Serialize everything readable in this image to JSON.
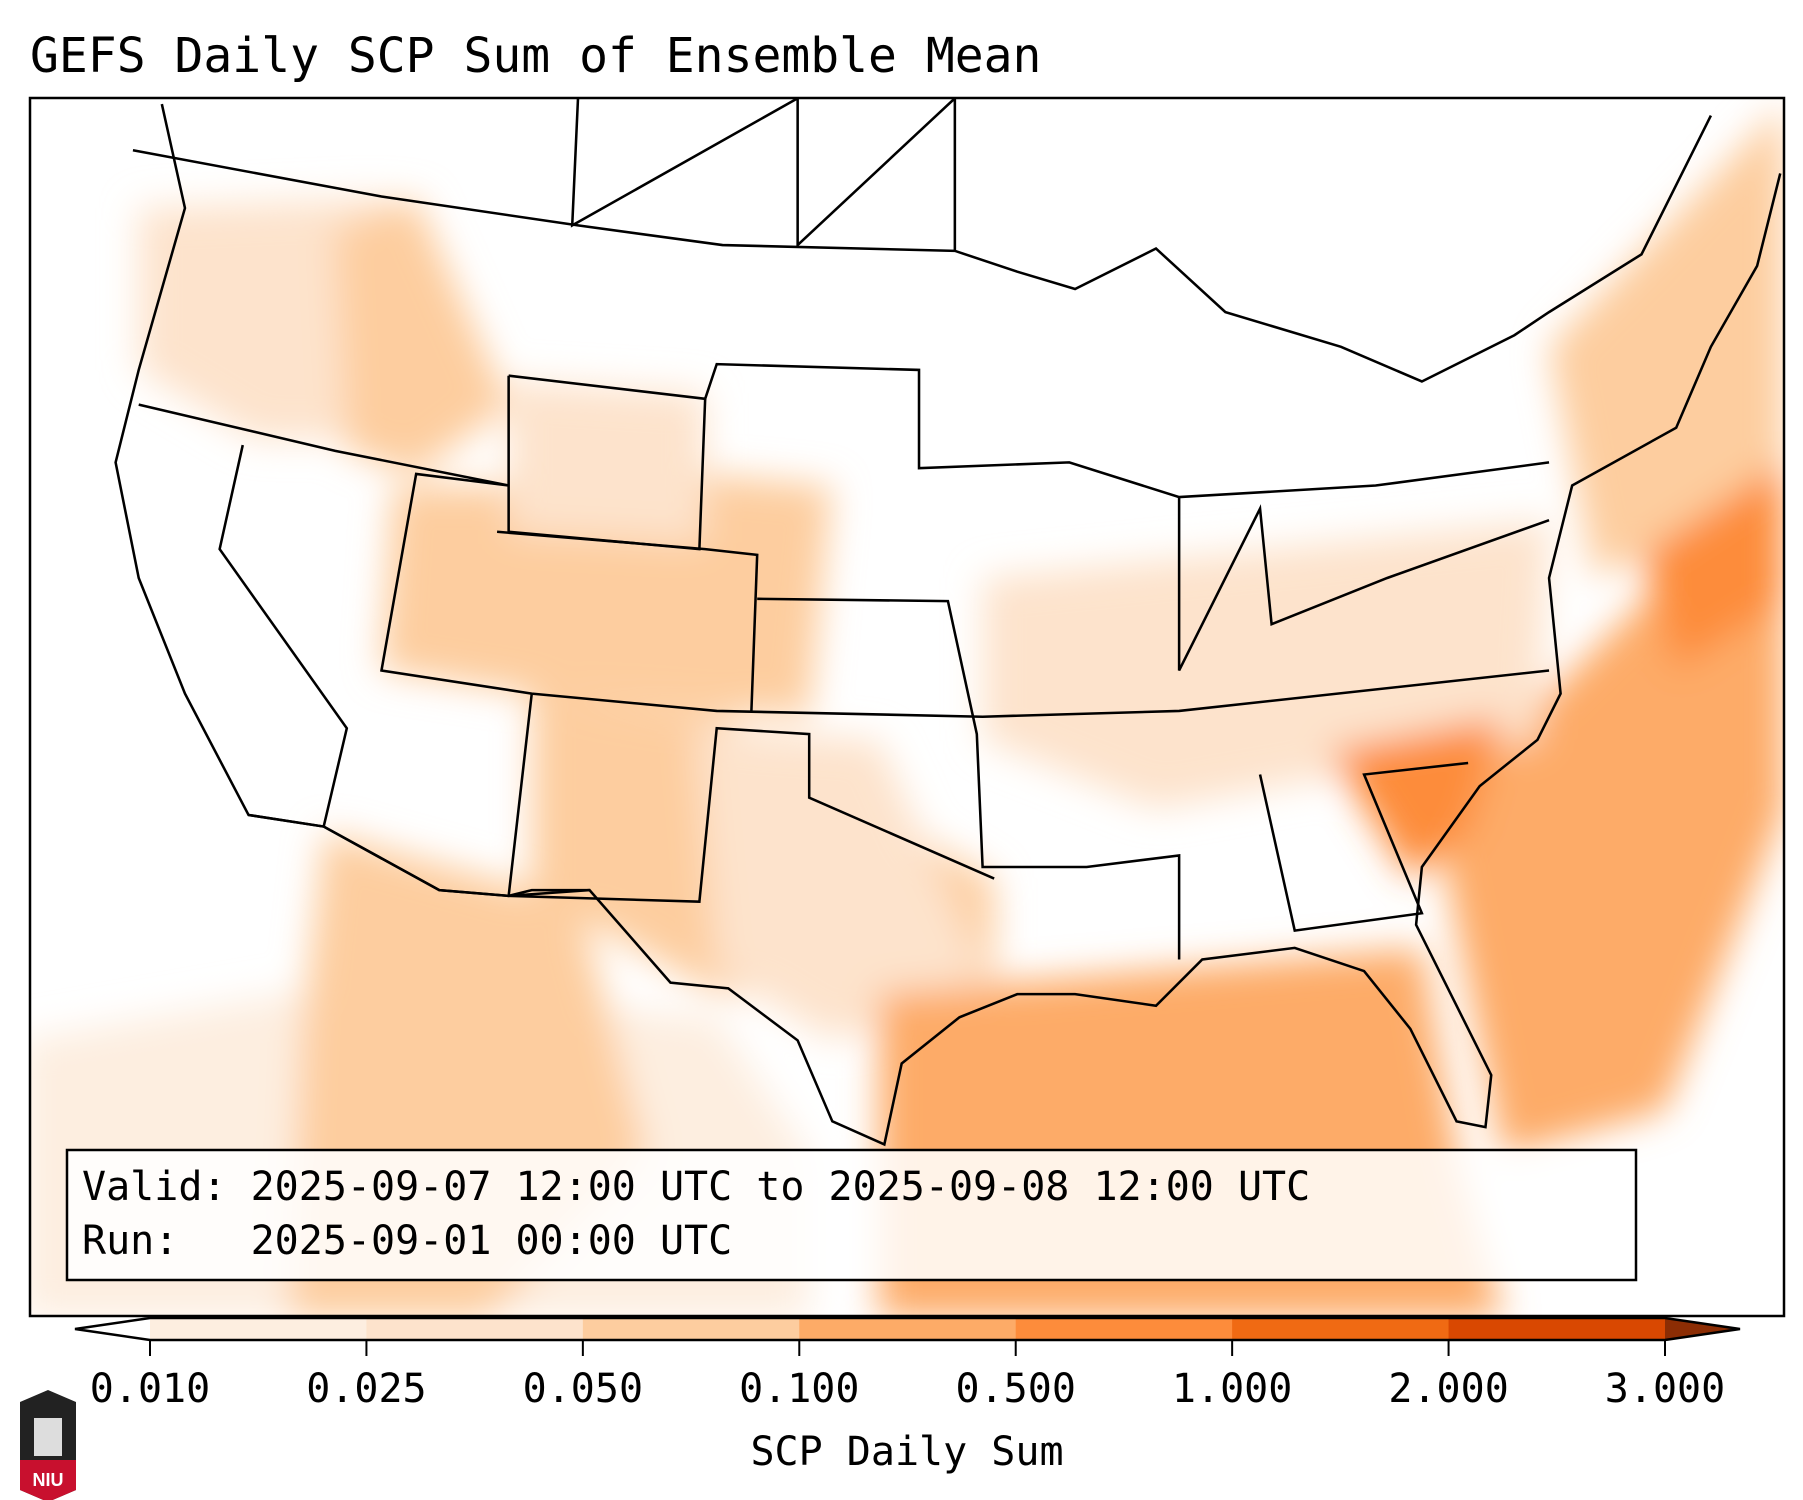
{
  "title": "GEFS Daily SCP Sum of Ensemble Mean",
  "info": {
    "valid_line": "Valid: 2025-09-07 12:00 UTC to 2025-09-08 12:00 UTC",
    "run_line": "Run:   2025-09-01 00:00 UTC"
  },
  "colorbar": {
    "label": "SCP Daily Sum",
    "ticks": [
      "0.010",
      "0.025",
      "0.050",
      "0.100",
      "0.500",
      "1.000",
      "2.000",
      "3.000"
    ],
    "colors": [
      "#fdeee0",
      "#fde3cc",
      "#fdcd9f",
      "#fdab67",
      "#fd8c3b",
      "#f06a13",
      "#d94801"
    ],
    "under_color": "#ffffff",
    "over_color": "#8c2d04"
  },
  "logo": {
    "text": "NIU",
    "color": "#c8102e"
  }
}
